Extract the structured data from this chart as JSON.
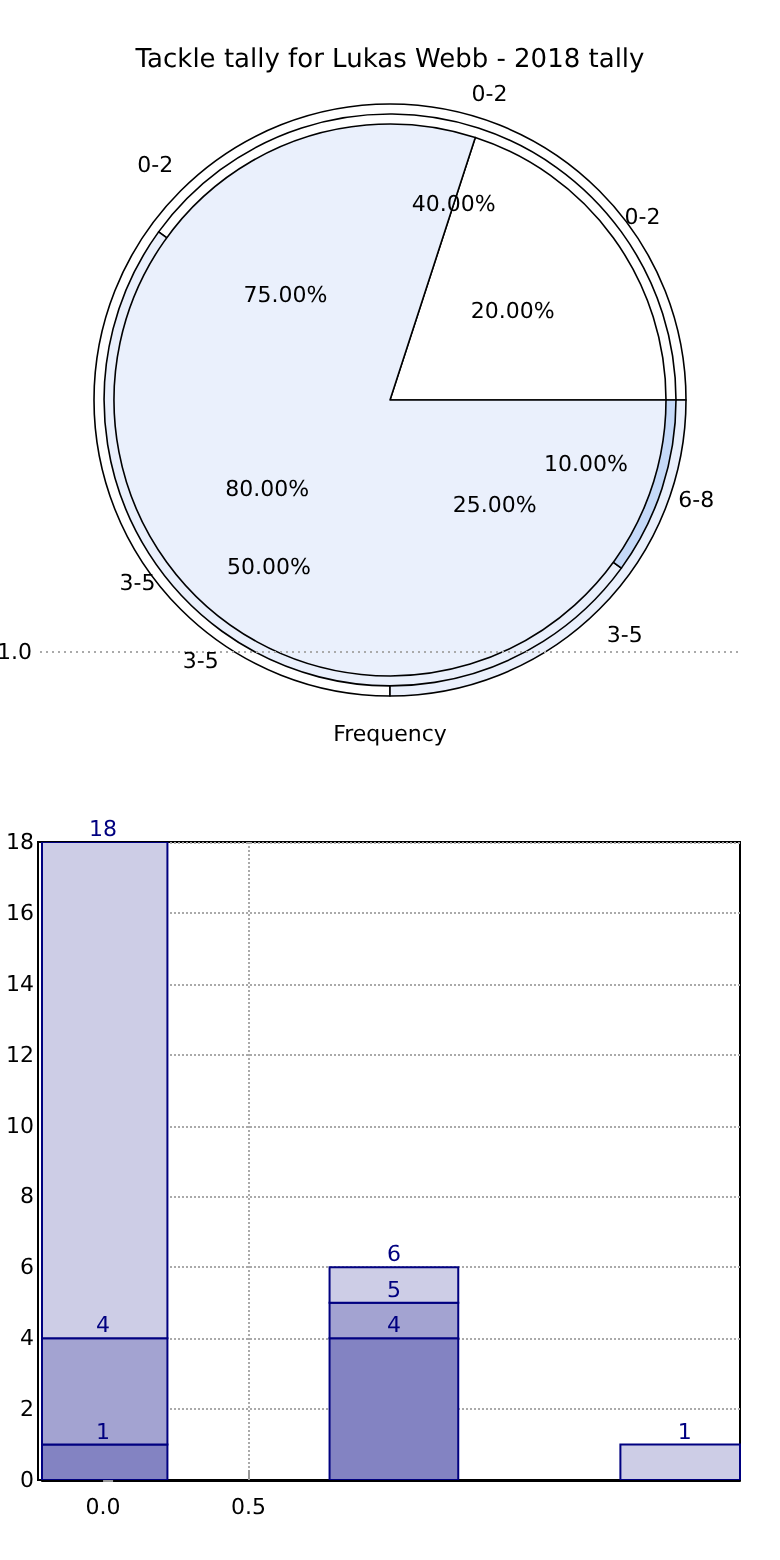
{
  "chart_data": [
    {
      "type": "pie",
      "title": "Tackle tally for Lukas Webb - 2018 tally",
      "xlabel": "Frequency",
      "annotations": [
        "1.0"
      ],
      "categories": [
        "0-2",
        "3-5"
      ],
      "values": [
        20,
        80
      ],
      "value_labels": [
        "20.00%",
        "80.00%"
      ],
      "colors": [
        "#ffffff",
        "#eaf0fc"
      ]
    },
    {
      "type": "pie",
      "categories": [
        "0-2",
        "3-5",
        "6-8"
      ],
      "values": [
        40,
        50,
        10
      ],
      "value_labels": [
        "40.00%",
        "50.00%",
        "10.00%"
      ],
      "colors": [
        "#ffffff",
        "#eaf0fc",
        "#c5d9f8"
      ]
    },
    {
      "type": "pie",
      "categories": [
        "0-2",
        "3-5"
      ],
      "values": [
        75,
        25
      ],
      "value_labels": [
        "75.00%",
        "25.00%"
      ],
      "colors": [
        "#ffffff",
        "#eaf0fc"
      ]
    },
    {
      "type": "bar",
      "stacked": true,
      "xlim": [
        -0.21,
        2.19
      ],
      "xticks": [
        {
          "value": 0,
          "label": "0.0"
        },
        0.5
      ],
      "ylim": [
        0,
        18
      ],
      "yticks": [
        0,
        2,
        4,
        6,
        8,
        10,
        12,
        14,
        16,
        18
      ],
      "grid": true,
      "annotations": [
        {
          "text": "1",
          "x": 0,
          "y": 1
        },
        {
          "text": "4",
          "x": 0,
          "y": 4
        },
        {
          "text": "18",
          "x": 0,
          "y": 18
        },
        {
          "text": "4",
          "x": 1,
          "y": 4
        },
        {
          "text": "5",
          "x": 1,
          "y": 5
        },
        {
          "text": "6",
          "x": 1,
          "y": 6
        },
        {
          "text": "1",
          "x": 2,
          "y": 1
        }
      ],
      "series": [
        {
          "color": "#8383c2",
          "x": [
            0,
            1
          ],
          "values": [
            1,
            4
          ]
        },
        {
          "color": "#a3a3d1",
          "x": [
            0,
            1
          ],
          "values": [
            3,
            1
          ]
        },
        {
          "color": "#cdcde6",
          "x": [
            0,
            1,
            2
          ],
          "values": [
            14,
            1,
            1
          ]
        }
      ]
    }
  ]
}
